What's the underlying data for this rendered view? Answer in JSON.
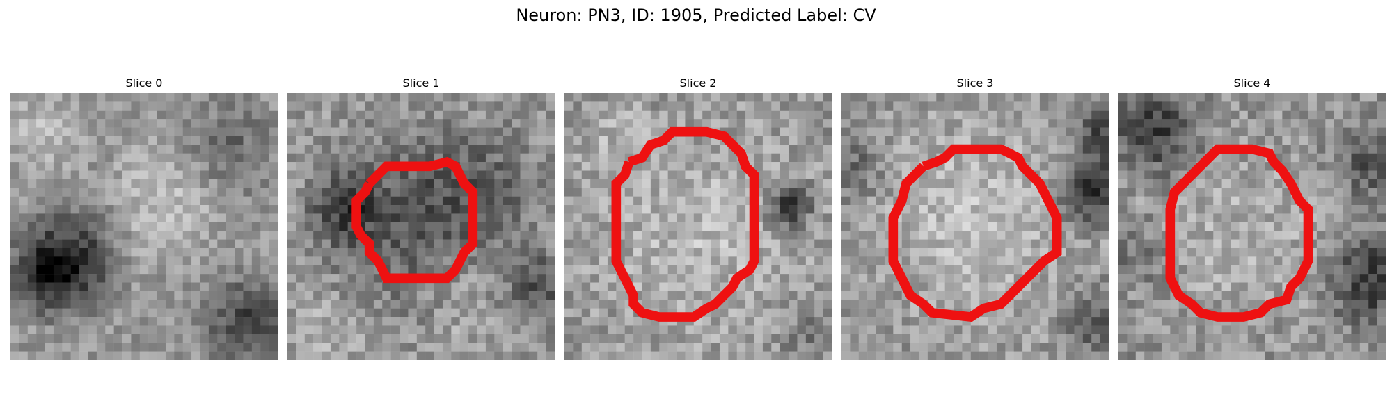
{
  "figure": {
    "title": "Neuron: PN3, ID: 1905, Predicted Label: CV"
  },
  "colors": {
    "contour": "#ee1111",
    "background": "#ffffff"
  },
  "slices": [
    {
      "label": "Slice 0",
      "has_contour": false
    },
    {
      "label": "Slice 1",
      "has_contour": true
    },
    {
      "label": "Slice 2",
      "has_contour": true
    },
    {
      "label": "Slice 3",
      "has_contour": true
    },
    {
      "label": "Slice 4",
      "has_contour": true
    }
  ]
}
